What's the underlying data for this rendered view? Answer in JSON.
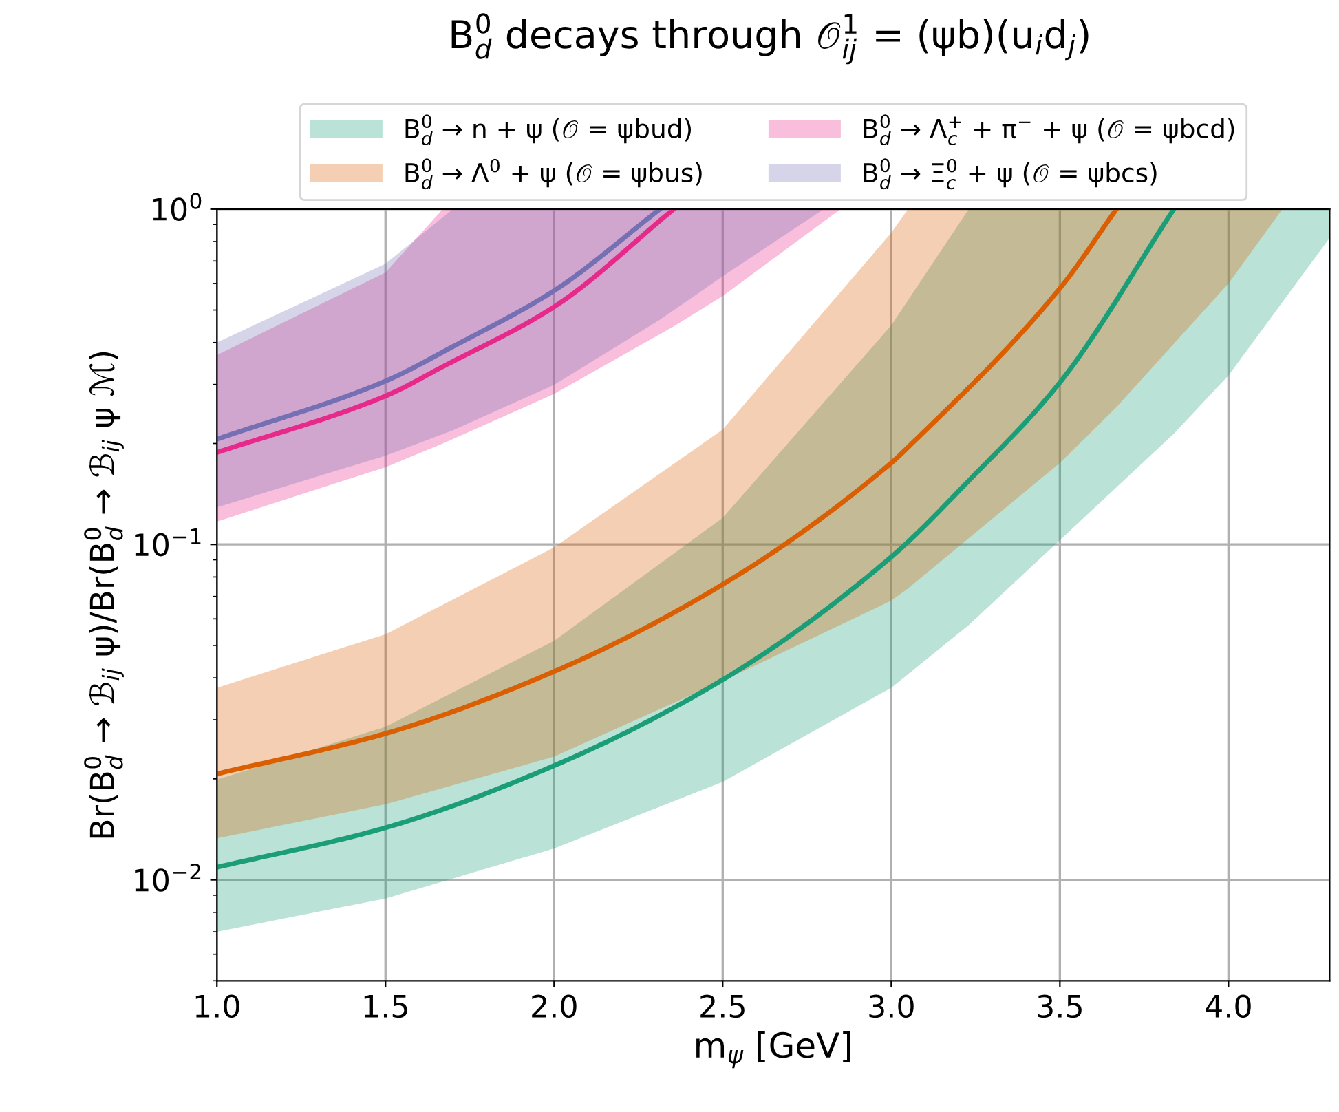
{
  "chart_data": {
    "type": "line",
    "title": "B$^{0}$$_{d}$ decays through 𝒪$^{1}$$_{ij}$ = (ψb)(u$_{i}$d$_{j}$)",
    "xlabel": "m$_{ψ}$ [GeV]",
    "ylabel": "Br(B$^{0}$$_{d}$ → ℬ$_{ij}$ ψ)/Br(B$^{0}$$_{d}$ → ℬ$_{ij}$ ψ ℳ)",
    "log": "y",
    "xlim": [
      1.0,
      4.3
    ],
    "ylim": [
      0.005,
      1
    ],
    "xticks": [
      {
        "value": 1,
        "label": "1.0"
      },
      1.5,
      {
        "value": 2,
        "label": "2.0"
      },
      2.5,
      {
        "value": 3,
        "label": "3.0"
      },
      3.5,
      {
        "value": 4,
        "label": "4.0"
      }
    ],
    "yticks": [
      {
        "value": 0.01,
        "label": "10$^{−2}$"
      },
      {
        "value": 0.1,
        "label": "10$^{−1}$"
      },
      {
        "value": 1,
        "label": "10$^{0}$"
      }
    ],
    "grid": true,
    "legend": "top",
    "marker": "none",
    "line_style": "solid",
    "series": [
      {
        "name": "B$^{0}$$_{d}$ → n + ψ (𝒪 = ψbud)",
        "color": "#1b9e77",
        "x": [
          1.0,
          1.5,
          2.0,
          2.5,
          3.0,
          3.23,
          3.5,
          3.838,
          4.0,
          4.3
        ],
        "values": [
          0.0109,
          0.0143,
          0.0219,
          0.0395,
          0.0918,
          0.155,
          0.304,
          1,
          null,
          null
        ],
        "upper": [
          0.0199,
          0.0286,
          0.0516,
          0.12,
          0.45,
          1,
          1,
          1,
          1,
          1
        ],
        "lower": [
          0.007,
          0.0088,
          0.0124,
          0.0196,
          0.0374,
          0.0575,
          0.103,
          0.214,
          0.319,
          0.82
        ]
      },
      {
        "name": "B$^{0}$$_{d}$ → Λ$^{0}$ + ψ (𝒪 = ψbus)",
        "color": "#d95f02",
        "x": [
          1.0,
          1.5,
          2.0,
          2.5,
          3.0,
          3.05,
          3.5,
          3.668,
          4.0,
          4.16
        ],
        "values": [
          0.0207,
          0.0273,
          0.0418,
          0.076,
          0.175,
          0.195,
          0.58,
          1,
          null,
          null
        ],
        "upper": [
          0.0374,
          0.054,
          0.098,
          0.22,
          0.85,
          1,
          1,
          1,
          1,
          1
        ],
        "lower": [
          0.0133,
          0.0168,
          0.0233,
          0.0392,
          0.068,
          0.074,
          0.175,
          0.257,
          0.6,
          1
        ]
      },
      {
        "name": "B$^{0}$$_{d}$ → Λ$^{+}$$_{c}$ + π$^{−}$ + ψ (𝒪 = ψbcd)",
        "color": "#e7298a",
        "x": [
          1.0,
          1.5,
          1.67,
          2.0,
          2.355,
          2.5,
          2.85
        ],
        "values": [
          0.188,
          0.277,
          0.339,
          0.511,
          1,
          null,
          null
        ],
        "upper": [
          0.367,
          0.647,
          1,
          1,
          1,
          1,
          1
        ],
        "lower": [
          0.117,
          0.17,
          0.2,
          0.281,
          0.447,
          0.55,
          1
        ]
      },
      {
        "name": "B$^{0}$$_{d}$ → Ξ$^{0}$$_{c}$ + ψ (𝒪 = ψbcs)",
        "color": "#7570b3",
        "x": [
          1.0,
          1.5,
          1.7,
          2.0,
          2.314,
          2.5,
          2.8
        ],
        "values": [
          0.206,
          0.307,
          0.389,
          0.571,
          1,
          null,
          null
        ],
        "upper": [
          0.4,
          0.687,
          1,
          1,
          1,
          1,
          1
        ],
        "lower": [
          0.129,
          0.184,
          0.219,
          0.299,
          0.468,
          0.63,
          1
        ]
      }
    ]
  }
}
